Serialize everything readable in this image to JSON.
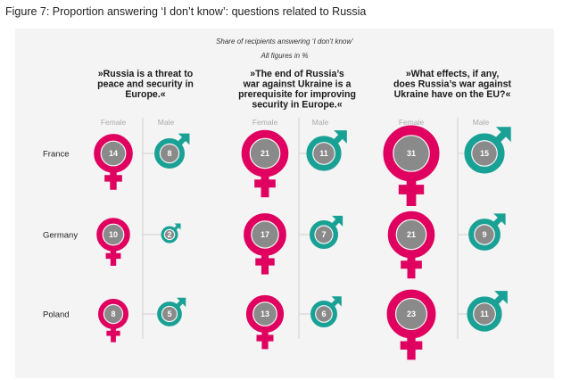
{
  "figure_title": "Figure 7: Proportion answering ‘I don’t know’: questions related to Russia",
  "colors": {
    "female": "#e0005f",
    "male": "#1aa195",
    "inner": "#8a8a8a",
    "panel": "#f4f4f4",
    "divider": "#cfcfcf"
  },
  "chart_data": {
    "type": "pictogram-bubble",
    "subtitle": "Share of recipients answering ‘I don’t know’",
    "note": "All figures in %",
    "column_labels": {
      "female": "Female",
      "male": "Male"
    },
    "countries": [
      "France",
      "Germany",
      "Poland"
    ],
    "panels": [
      {
        "question": [
          "»Russia is a threat to",
          "peace and security in",
          "Europe.«"
        ],
        "female": [
          14,
          10,
          8
        ],
        "male": [
          8,
          2,
          5
        ]
      },
      {
        "question": [
          "»The end of Russia’s",
          "war against Ukraine is a",
          "prerequisite for improving",
          "security in Europe.«"
        ],
        "female": [
          21,
          17,
          13
        ],
        "male": [
          11,
          7,
          6
        ]
      },
      {
        "question": [
          "»What effects, if any,",
          "does Russia’s war against",
          "Ukraine have on the EU?«"
        ],
        "female": [
          31,
          21,
          23
        ],
        "male": [
          15,
          9,
          11
        ]
      }
    ]
  }
}
